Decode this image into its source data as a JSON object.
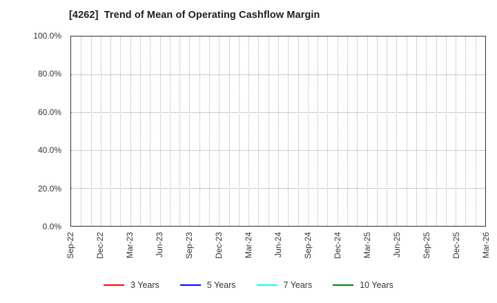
{
  "title": "[4262]  Trend of Mean of Operating Cashflow Margin",
  "colors": {
    "background": "#ffffff",
    "frame": "#2e2e2e",
    "grid_vertical": "#b0b0b0",
    "grid_horizontal": "#989898",
    "text": "#333333",
    "title_text": "#1d1d1d"
  },
  "chart_data": {
    "type": "line",
    "title": "[4262]  Trend of Mean of Operating Cashflow Margin",
    "xlabel": "",
    "ylabel": "",
    "ylim": [
      0,
      100
    ],
    "y_ticks": [
      0,
      20,
      40,
      60,
      80,
      100
    ],
    "y_tick_labels": [
      "0.0%",
      "20.0%",
      "40.0%",
      "60.0%",
      "80.0%",
      "100.0%"
    ],
    "x_tick_labels": [
      "Sep-22",
      "Dec-22",
      "Mar-23",
      "Jun-23",
      "Sep-23",
      "Dec-23",
      "Mar-24",
      "Jun-24",
      "Sep-24",
      "Dec-24",
      "Mar-25",
      "Jun-25",
      "Sep-25",
      "Dec-25",
      "Mar-26"
    ],
    "x_tick_label_rotation_deg": 90,
    "minor_vertical_gridlines_per_quarter": 3,
    "grid": true,
    "grid_style": "dotted",
    "legend_position": "bottom-center",
    "series": [
      {
        "name": "3 Years",
        "color": "#ff0000",
        "values": []
      },
      {
        "name": "5 Years",
        "color": "#0000ff",
        "values": []
      },
      {
        "name": "7 Years",
        "color": "#00ffff",
        "values": []
      },
      {
        "name": "10 Years",
        "color": "#008000",
        "values": []
      }
    ],
    "note": "Plot area is empty; no data points are drawn for any series."
  }
}
